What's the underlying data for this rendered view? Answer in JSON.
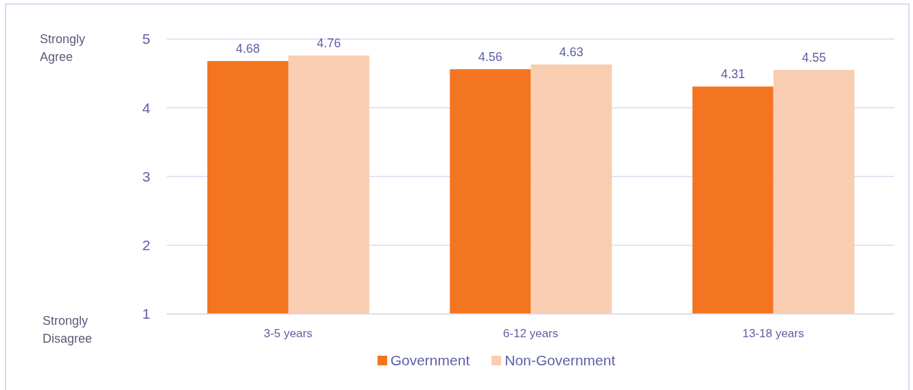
{
  "chart_data": {
    "type": "bar",
    "categories": [
      "3-5 years",
      "6-12 years",
      "13-18 years"
    ],
    "series": [
      {
        "name": "Government",
        "color": "#f47521",
        "values": [
          4.68,
          4.56,
          4.31
        ]
      },
      {
        "name": "Non-Government",
        "color": "#f9cdb2",
        "values": [
          4.76,
          4.63,
          4.55
        ]
      }
    ],
    "ylim": [
      1,
      5
    ],
    "yticks": [
      1,
      2,
      3,
      4,
      5
    ],
    "grid": "y",
    "legend": "bottom",
    "data_labels": true,
    "annotations": [
      "Strongly Agree",
      "Strongly Disagree"
    ]
  }
}
